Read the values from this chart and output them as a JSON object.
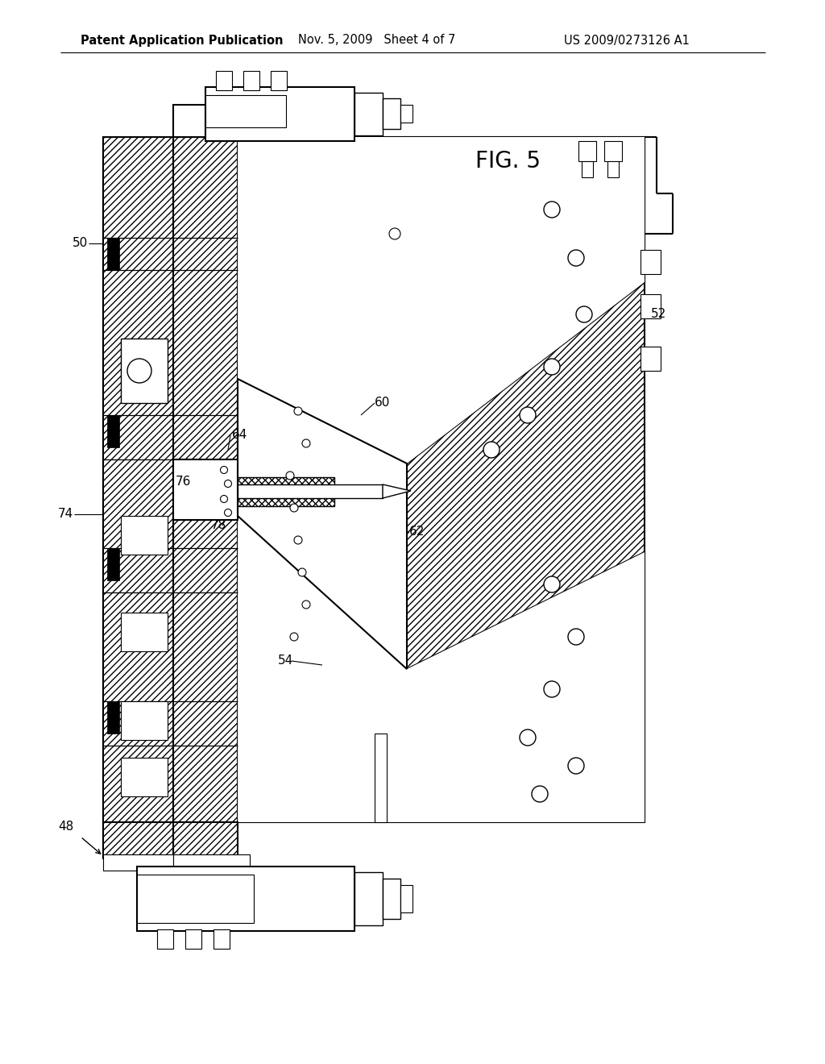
{
  "header_left": "Patent Application Publication",
  "header_mid": "Nov. 5, 2009   Sheet 4 of 7",
  "header_right": "US 2009/0273126 A1",
  "fig_label": "FIG. 5",
  "bg_color": "#ffffff",
  "line_color": "#000000",
  "header_fontsize": 10.5,
  "label_fontsize": 11
}
